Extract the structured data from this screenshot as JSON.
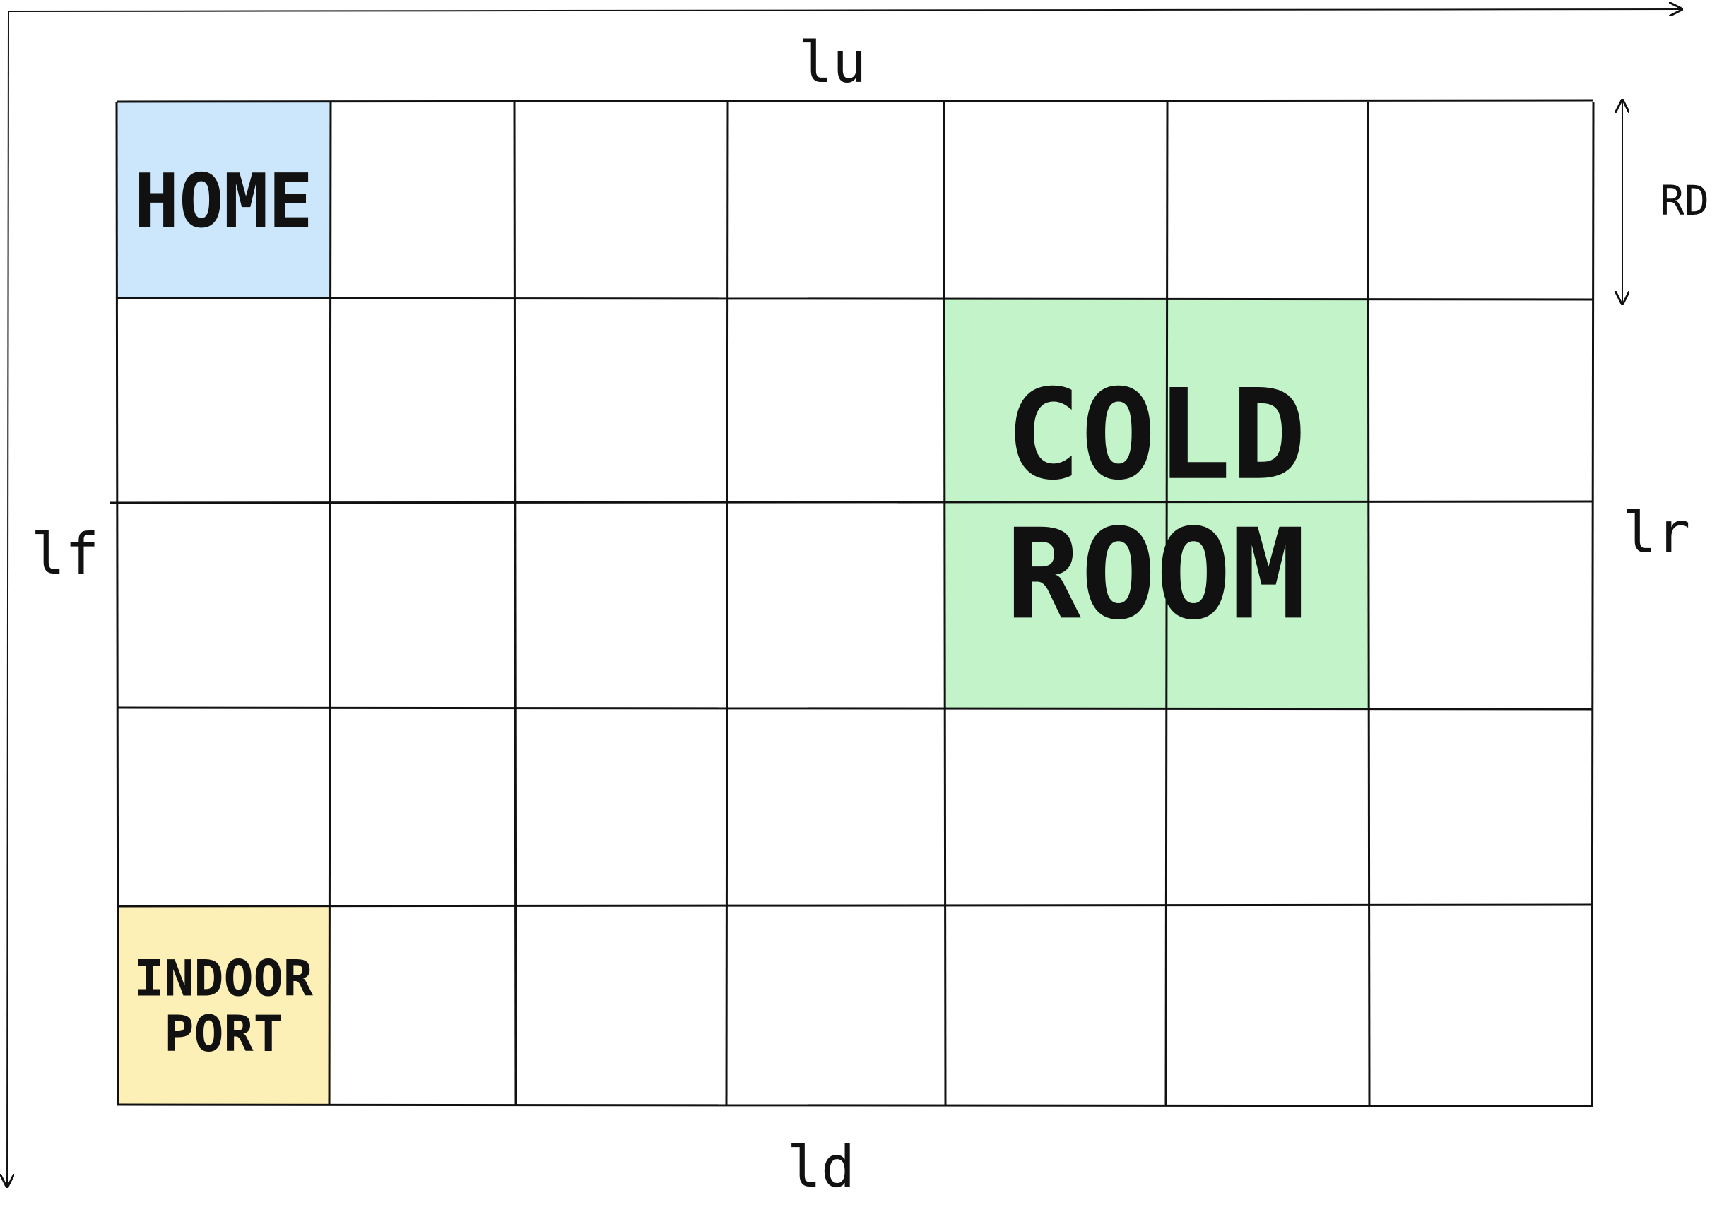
{
  "diagram": {
    "grid": {
      "rows": 5,
      "cols": 7
    },
    "labels": {
      "top": "lu",
      "bottom": "ld",
      "left": "lf",
      "right": "lr",
      "cell_height": "RD"
    },
    "zones": [
      {
        "id": "home",
        "lines": [
          "HOME"
        ],
        "row": 0,
        "col": 0,
        "rowspan": 1,
        "colspan": 1,
        "fill": "#cce7fb"
      },
      {
        "id": "cold-room",
        "lines": [
          "COLD",
          "ROOM"
        ],
        "row": 1,
        "col": 4,
        "rowspan": 2,
        "colspan": 2,
        "fill": "#c2f3c9"
      },
      {
        "id": "indoor-port",
        "lines": [
          "INDOOR",
          "PORT"
        ],
        "row": 4,
        "col": 0,
        "rowspan": 1,
        "colspan": 1,
        "fill": "#fdf0b6"
      }
    ],
    "colors": {
      "stroke": "#111111"
    }
  }
}
